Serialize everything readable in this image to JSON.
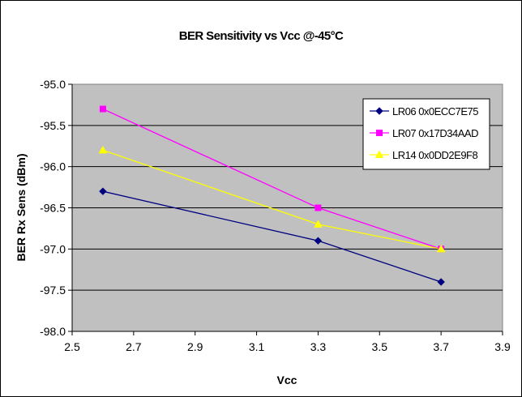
{
  "chart_data": {
    "type": "line",
    "title": "BER Sensitivity vs Vcc @-45°C",
    "xlabel": "Vcc",
    "ylabel": "BER Rx Sens (dBm)",
    "xlim": [
      2.5,
      3.9
    ],
    "ylim": [
      -98.0,
      -95.0
    ],
    "x_ticks": [
      "2.5",
      "2.7",
      "2.9",
      "3.1",
      "3.3",
      "3.5",
      "3.7",
      "3.9"
    ],
    "y_ticks": [
      "-95.0",
      "-95.5",
      "-96.0",
      "-96.5",
      "-97.0",
      "-97.5",
      "-98.0"
    ],
    "grid": "horizontal",
    "plot_background": "#c0c0c0",
    "legend_position": "top-right",
    "series": [
      {
        "name": "LR06 0x0ECC7E75",
        "color": "#000080",
        "marker": "diamond",
        "x": [
          2.6,
          3.3,
          3.7
        ],
        "y": [
          -96.3,
          -96.9,
          -97.4
        ]
      },
      {
        "name": "LR07 0x17D34AAD",
        "color": "#ff00ff",
        "marker": "square",
        "x": [
          2.6,
          3.3,
          3.7
        ],
        "y": [
          -95.3,
          -96.5,
          -97.0
        ]
      },
      {
        "name": "LR14 0x0DD2E9F8",
        "color": "#ffff00",
        "marker": "triangle",
        "x": [
          2.6,
          3.3,
          3.7
        ],
        "y": [
          -95.8,
          -96.7,
          -97.0
        ]
      }
    ]
  }
}
